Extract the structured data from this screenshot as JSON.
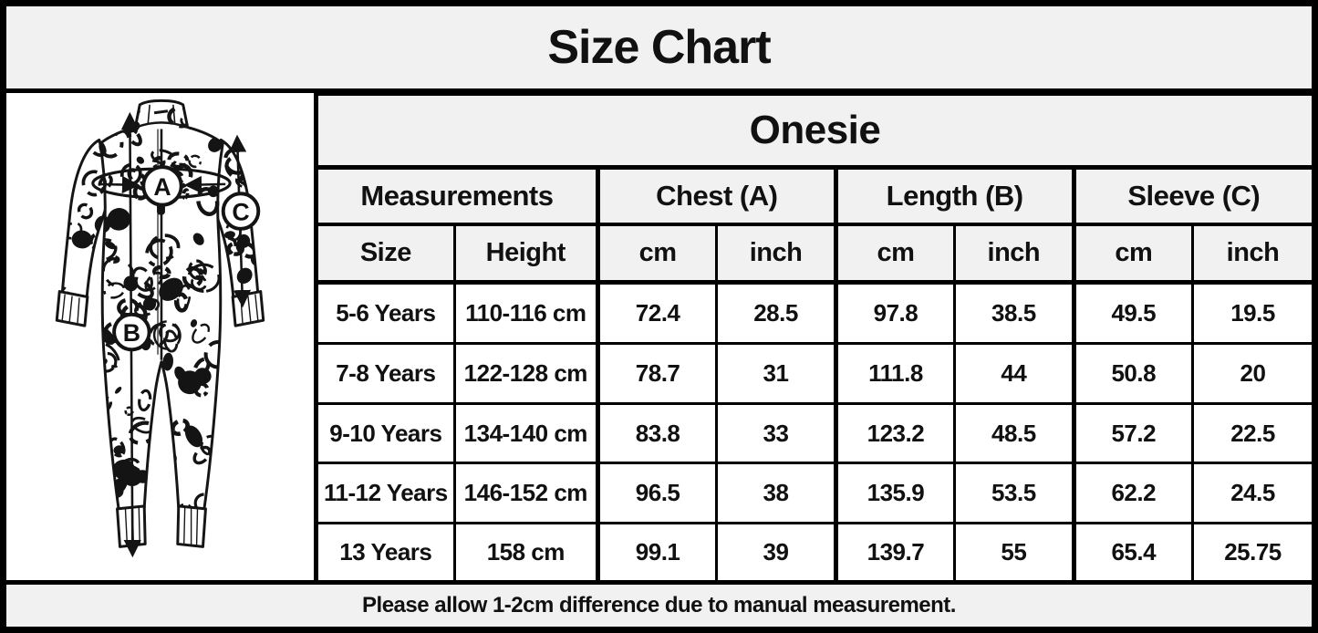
{
  "title": "Size Chart",
  "illustration": {
    "description": "leopard-print-onesie-line-drawing",
    "marker_labels": [
      "A",
      "B",
      "C"
    ]
  },
  "table": {
    "product_header": "Onesie",
    "group_headers": {
      "measurements": "Measurements",
      "chest": "Chest (A)",
      "length": "Length (B)",
      "sleeve": "Sleeve (C)"
    },
    "column_headers": {
      "size": "Size",
      "height": "Height",
      "chest_cm": "cm",
      "chest_in": "inch",
      "length_cm": "cm",
      "length_in": "inch",
      "sleeve_cm": "cm",
      "sleeve_in": "inch"
    },
    "rows": [
      {
        "size": "5-6 Years",
        "height": "110-116 cm",
        "chest_cm": "72.4",
        "chest_in": "28.5",
        "length_cm": "97.8",
        "length_in": "38.5",
        "sleeve_cm": "49.5",
        "sleeve_in": "19.5"
      },
      {
        "size": "7-8 Years",
        "height": "122-128 cm",
        "chest_cm": "78.7",
        "chest_in": "31",
        "length_cm": "111.8",
        "length_in": "44",
        "sleeve_cm": "50.8",
        "sleeve_in": "20"
      },
      {
        "size": "9-10 Years",
        "height": "134-140 cm",
        "chest_cm": "83.8",
        "chest_in": "33",
        "length_cm": "123.2",
        "length_in": "48.5",
        "sleeve_cm": "57.2",
        "sleeve_in": "22.5"
      },
      {
        "size": "11-12 Years",
        "height": "146-152 cm",
        "chest_cm": "96.5",
        "chest_in": "38",
        "length_cm": "135.9",
        "length_in": "53.5",
        "sleeve_cm": "62.2",
        "sleeve_in": "24.5"
      },
      {
        "size": "13 Years",
        "height": "158 cm",
        "chest_cm": "99.1",
        "chest_in": "39",
        "length_cm": "139.7",
        "length_in": "55",
        "sleeve_cm": "65.4",
        "sleeve_in": "25.75"
      }
    ]
  },
  "footer": {
    "note": "Please allow 1-2cm difference due to manual measurement."
  },
  "colors": {
    "band_bg": "#f1f1f1",
    "cell_bg": "#ffffff",
    "border": "#000000",
    "text": "#111111"
  }
}
